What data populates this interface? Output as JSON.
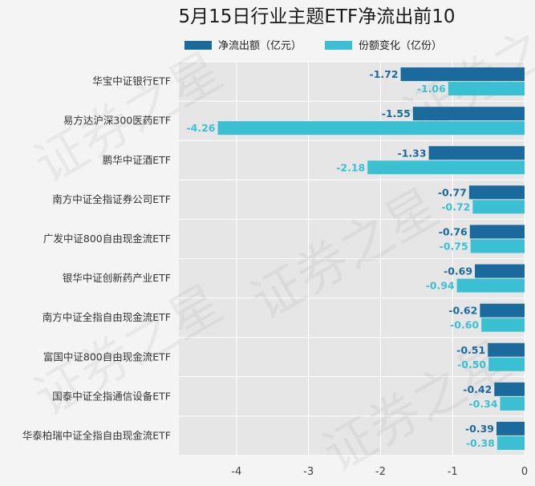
{
  "chart_data": {
    "type": "bar",
    "orientation": "horizontal",
    "title": "5月15日行业主题ETF净流出前10",
    "categories": [
      "华宝中证银行ETF",
      "易方达沪深300医药ETF",
      "鹏华中证酒ETF",
      "南方中证全指证券公司ETF",
      "广发中证800自由现金流ETF",
      "银华中证创新药产业ETF",
      "南方中证全指自由现金流ETF",
      "富国中证800自由现金流ETF",
      "国泰中证全指通信设备ETF",
      "华泰柏瑞中证全指自由现金流ETF"
    ],
    "series": [
      {
        "name": "净流出额（亿元）",
        "color": "#1b6a9e",
        "values": [
          -1.72,
          -1.55,
          -1.33,
          -0.77,
          -0.76,
          -0.69,
          -0.62,
          -0.51,
          -0.42,
          -0.39
        ],
        "labels": [
          "-1.72",
          "-1.55",
          "-1.33",
          "-0.77",
          "-0.76",
          "-0.69",
          "-0.62",
          "-0.51",
          "-0.42",
          "-0.39"
        ]
      },
      {
        "name": "份额变化（亿份）",
        "color": "#3bbfd2",
        "values": [
          -1.06,
          -4.26,
          -2.18,
          -0.72,
          -0.75,
          -0.94,
          -0.6,
          -0.5,
          -0.34,
          -0.38
        ],
        "labels": [
          "-1.06",
          "-4.26",
          "-2.18",
          "-0.72",
          "-0.75",
          "-0.94",
          "-0.60",
          "-0.50",
          "-0.34",
          "-0.38"
        ]
      }
    ],
    "xlim": [
      -4.8,
      0
    ],
    "xticks": [
      -4,
      -3,
      -2,
      -1,
      0
    ],
    "xtick_labels": [
      "-4",
      "-3",
      "-2",
      "-1",
      "0"
    ],
    "grid": true,
    "legend_position": "top",
    "xlabel": "",
    "ylabel": "",
    "background_color": "#e6e6e6",
    "watermark": "证券之星"
  }
}
